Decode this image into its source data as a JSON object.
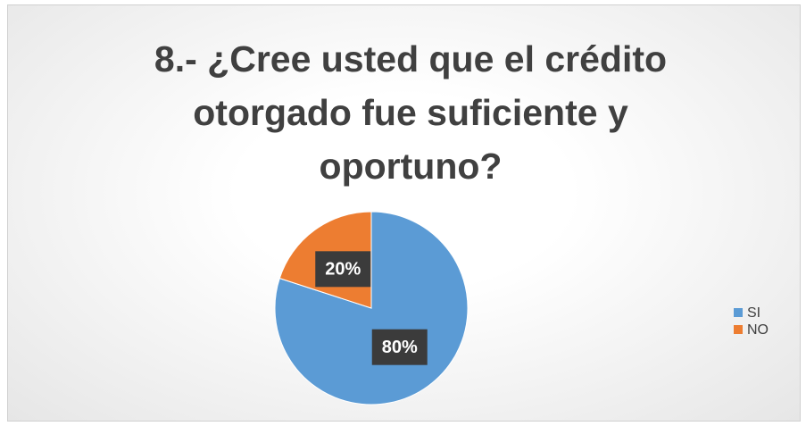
{
  "chart_data": {
    "type": "pie",
    "title": "8.- ¿Cree usted que el crédito otorgado fue suficiente y oportuno?",
    "categories": [
      "SI",
      "NO"
    ],
    "values": [
      80,
      20
    ],
    "value_labels": [
      "80%",
      "20%"
    ],
    "colors": [
      "#5b9bd5",
      "#ed7d31"
    ],
    "legend": "right"
  }
}
